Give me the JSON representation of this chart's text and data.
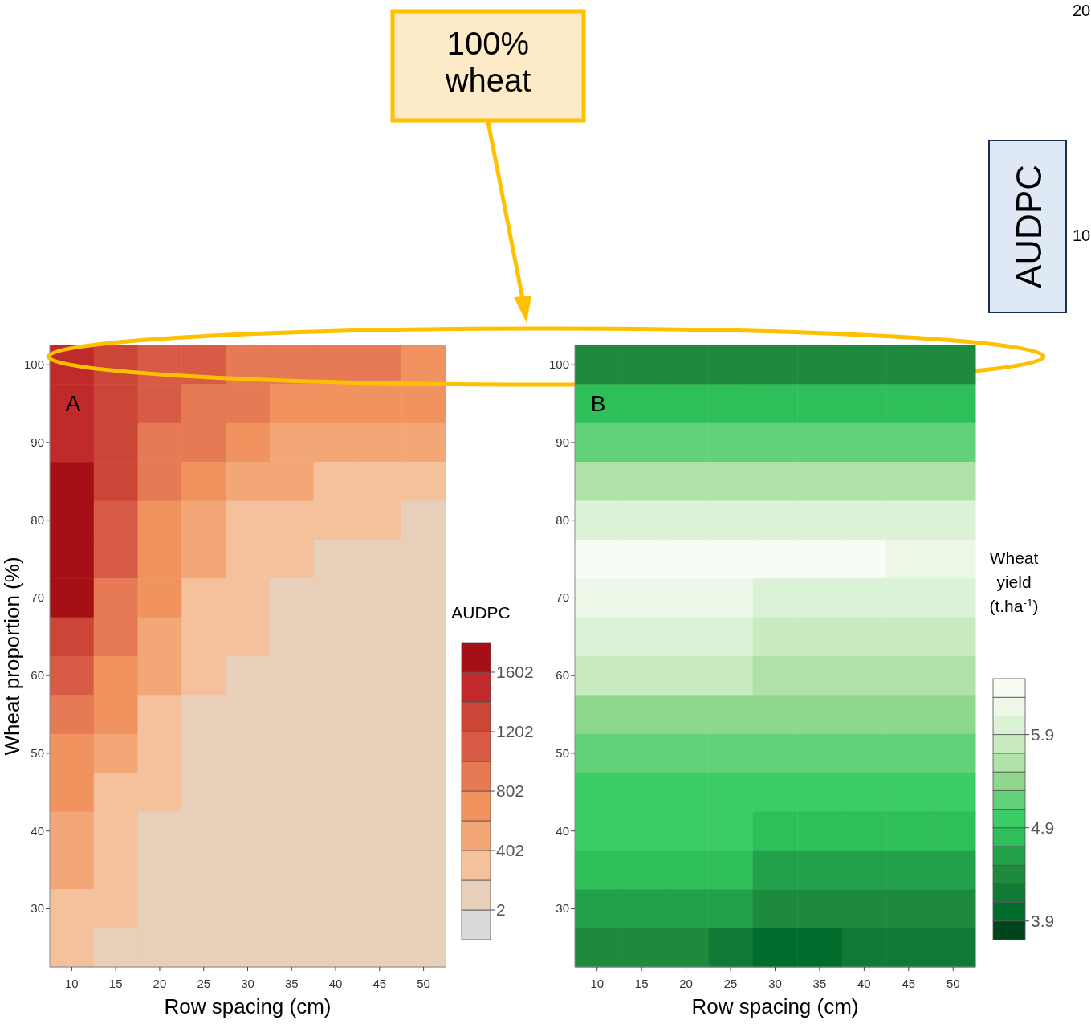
{
  "chart_data": [
    {
      "type": "heatmap",
      "xlabel": "Row spacing (cm)",
      "ylabel": "Wheat proportion (%)",
      "clabel": "AUDPC",
      "categories": [
        "10",
        "15",
        "20",
        "25",
        "30",
        "35",
        "40",
        "45",
        "50"
      ],
      "y_categories": [
        "100",
        null,
        "90",
        null,
        "80",
        null,
        "70",
        null,
        "60",
        null,
        "50",
        null,
        "40",
        null,
        "30",
        null
      ],
      "cells": [
        [
          1502,
          1302,
          1102,
          1102,
          902,
          902,
          902,
          902,
          702
        ],
        [
          1502,
          1302,
          1102,
          902,
          902,
          702,
          702,
          702,
          702
        ],
        [
          1502,
          1302,
          902,
          902,
          702,
          502,
          502,
          502,
          502
        ],
        [
          1702,
          1302,
          902,
          702,
          502,
          502,
          302,
          302,
          302
        ],
        [
          1702,
          1102,
          702,
          502,
          302,
          302,
          302,
          302,
          102
        ],
        [
          1702,
          1102,
          702,
          502,
          302,
          302,
          102,
          102,
          102
        ],
        [
          1702,
          902,
          702,
          302,
          302,
          102,
          102,
          102,
          102
        ],
        [
          1302,
          902,
          502,
          302,
          302,
          102,
          102,
          102,
          102
        ],
        [
          1102,
          702,
          502,
          302,
          102,
          102,
          102,
          102,
          102
        ],
        [
          902,
          702,
          302,
          102,
          102,
          102,
          102,
          102,
          102
        ],
        [
          702,
          502,
          302,
          102,
          102,
          102,
          102,
          102,
          102
        ],
        [
          702,
          302,
          302,
          102,
          102,
          102,
          102,
          102,
          102
        ],
        [
          502,
          302,
          102,
          102,
          102,
          102,
          102,
          102,
          102
        ],
        [
          502,
          302,
          102,
          102,
          102,
          102,
          102,
          102,
          102
        ],
        [
          302,
          302,
          102,
          102,
          102,
          102,
          102,
          102,
          102
        ],
        [
          302,
          102,
          102,
          102,
          102,
          102,
          102,
          102,
          102
        ]
      ],
      "clim": [
        -198,
        1802
      ],
      "cticks": [
        2,
        402,
        802,
        1202,
        1602
      ],
      "colors": [
        "#d9d9d9",
        "#e8cfba",
        "#f4c19c",
        "#f3a776",
        "#f0935f",
        "#e57a54",
        "#d85c45",
        "#cc4638",
        "#c02a2a",
        "#a50f15"
      ],
      "annotations": [
        "A",
        "100% wheat"
      ]
    },
    {
      "type": "heatmap",
      "xlabel": "Row spacing (cm)",
      "clabel": "Wheat yield (t.ha$^{-1}$)",
      "categories": [
        "10",
        "15",
        "20",
        "25",
        "30",
        "35",
        "40",
        "45",
        "50"
      ],
      "y_categories": [
        "100",
        null,
        "90",
        null,
        "80",
        null,
        "70",
        null,
        "60",
        null,
        "50",
        null,
        "40",
        null,
        "30",
        null
      ],
      "cells": [
        [
          4.4,
          4.4,
          4.4,
          4.4,
          4.4,
          4.4,
          4.4,
          4.4,
          4.4
        ],
        [
          4.8,
          4.8,
          4.8,
          4.8,
          4.8,
          4.8,
          4.8,
          4.8,
          4.8
        ],
        [
          5.2,
          5.2,
          5.2,
          5.2,
          5.2,
          5.2,
          5.2,
          5.2,
          5.2
        ],
        [
          5.6,
          5.6,
          5.6,
          5.6,
          5.6,
          5.6,
          5.6,
          5.6,
          5.6
        ],
        [
          6.0,
          6.0,
          6.0,
          6.0,
          6.0,
          6.0,
          6.0,
          6.0,
          6.0
        ],
        [
          6.4,
          6.4,
          6.4,
          6.4,
          6.4,
          6.4,
          6.4,
          6.2,
          6.2
        ],
        [
          6.2,
          6.2,
          6.2,
          6.2,
          6.0,
          6.0,
          6.0,
          6.0,
          6.0
        ],
        [
          6.0,
          6.0,
          6.0,
          6.0,
          5.8,
          5.8,
          5.8,
          5.8,
          5.8
        ],
        [
          5.8,
          5.8,
          5.8,
          5.8,
          5.6,
          5.6,
          5.6,
          5.6,
          5.6
        ],
        [
          5.4,
          5.4,
          5.4,
          5.4,
          5.4,
          5.4,
          5.4,
          5.4,
          5.4
        ],
        [
          5.2,
          5.2,
          5.2,
          5.2,
          5.2,
          5.2,
          5.2,
          5.2,
          5.2
        ],
        [
          5.0,
          5.0,
          5.0,
          5.0,
          5.0,
          5.0,
          5.0,
          5.0,
          5.0
        ],
        [
          5.0,
          5.0,
          5.0,
          5.0,
          4.8,
          4.8,
          4.8,
          4.8,
          4.8
        ],
        [
          4.8,
          4.8,
          4.8,
          4.8,
          4.6,
          4.6,
          4.6,
          4.6,
          4.6
        ],
        [
          4.6,
          4.6,
          4.6,
          4.6,
          4.4,
          4.4,
          4.4,
          4.4,
          4.4
        ],
        [
          4.4,
          4.4,
          4.4,
          4.2,
          4.0,
          4.0,
          4.2,
          4.2,
          4.2
        ]
      ],
      "clim": [
        3.7,
        6.5
      ],
      "cticks": [
        3.9,
        4.9,
        5.9
      ],
      "colors": [
        "#00441b",
        "#006d2c",
        "#117a36",
        "#1e8a3e",
        "#23a04a",
        "#2fbf5a",
        "#3ccc66",
        "#62d27a",
        "#8ed88e",
        "#b0e2a8",
        "#c8ebc0",
        "#dcf2d6",
        "#ecf7e8",
        "#f7fcf5"
      ],
      "annotations": [
        "B",
        "AUDPC",
        "20",
        "10"
      ]
    }
  ]
}
